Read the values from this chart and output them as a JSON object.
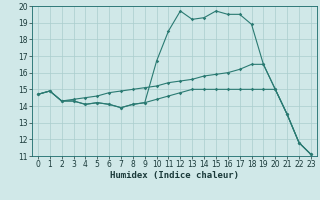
{
  "title": "",
  "xlabel": "Humidex (Indice chaleur)",
  "ylabel": "",
  "xlim": [
    -0.5,
    23.5
  ],
  "ylim": [
    11,
    20
  ],
  "xticks": [
    0,
    1,
    2,
    3,
    4,
    5,
    6,
    7,
    8,
    9,
    10,
    11,
    12,
    13,
    14,
    15,
    16,
    17,
    18,
    19,
    20,
    21,
    22,
    23
  ],
  "yticks": [
    11,
    12,
    13,
    14,
    15,
    16,
    17,
    18,
    19,
    20
  ],
  "bg_color": "#d0e8e8",
  "line_color": "#2a7a72",
  "grid_color": "#aacece",
  "line1_x": [
    0,
    1,
    2,
    3,
    4,
    5,
    6,
    7,
    8,
    9,
    10,
    11,
    12,
    13,
    14,
    15,
    16,
    17,
    18,
    19,
    20,
    21,
    22,
    23
  ],
  "line1_y": [
    14.7,
    14.9,
    14.3,
    14.3,
    14.1,
    14.2,
    14.1,
    13.9,
    14.1,
    14.2,
    16.7,
    18.5,
    19.7,
    19.2,
    19.3,
    19.7,
    19.5,
    19.5,
    18.9,
    16.5,
    15.0,
    13.5,
    11.8,
    11.1
  ],
  "line2_x": [
    0,
    1,
    2,
    3,
    4,
    5,
    6,
    7,
    8,
    9,
    10,
    11,
    12,
    13,
    14,
    15,
    16,
    17,
    18,
    19,
    20,
    21,
    22,
    23
  ],
  "line2_y": [
    14.7,
    14.9,
    14.3,
    14.4,
    14.5,
    14.6,
    14.8,
    14.9,
    15.0,
    15.1,
    15.2,
    15.4,
    15.5,
    15.6,
    15.8,
    15.9,
    16.0,
    16.2,
    16.5,
    16.5,
    15.0,
    13.5,
    11.8,
    11.1
  ],
  "line3_x": [
    0,
    1,
    2,
    3,
    4,
    5,
    6,
    7,
    8,
    9,
    10,
    11,
    12,
    13,
    14,
    15,
    16,
    17,
    18,
    19,
    20,
    21,
    22,
    23
  ],
  "line3_y": [
    14.7,
    14.9,
    14.3,
    14.3,
    14.1,
    14.2,
    14.1,
    13.9,
    14.1,
    14.2,
    14.4,
    14.6,
    14.8,
    15.0,
    15.0,
    15.0,
    15.0,
    15.0,
    15.0,
    15.0,
    15.0,
    13.5,
    11.8,
    11.1
  ],
  "marker_size": 1.8,
  "line_width": 0.8,
  "tick_fontsize": 5.5,
  "xlabel_fontsize": 6.5
}
